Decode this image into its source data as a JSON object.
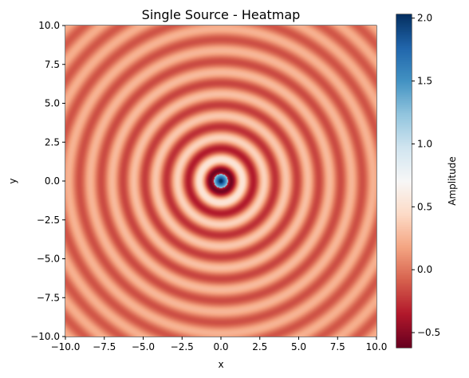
{
  "chart_data": {
    "type": "heatmap",
    "title": "Single Source - Heatmap",
    "xlabel": "x",
    "ylabel": "y",
    "xlim": [
      -10,
      10
    ],
    "ylim": [
      -10,
      10
    ],
    "x_ticks": [
      -10,
      -7.5,
      -5,
      -2.5,
      0,
      2.5,
      5,
      7.5,
      10
    ],
    "y_ticks": [
      -10,
      -7.5,
      -5,
      -2.5,
      0,
      2.5,
      5,
      7.5,
      10
    ],
    "x_tick_labels": [
      "−10.0",
      "−7.5",
      "−5.0",
      "−2.5",
      "0.0",
      "2.5",
      "5.0",
      "7.5",
      "10.0"
    ],
    "y_tick_labels": [
      "−10.0",
      "−7.5",
      "−5.0",
      "−2.5",
      "0.0",
      "2.5",
      "5.0",
      "7.5",
      "10.0"
    ],
    "field": {
      "source": [
        0,
        0
      ],
      "ring_radii_peaks": [
        0,
        1.5,
        2.8,
        4.2,
        5.6,
        7.0,
        8.4,
        9.8
      ],
      "ring_radii_troughs": [
        0.75,
        2.2,
        3.5,
        4.9,
        6.3,
        7.7,
        9.1
      ],
      "center_amplitude": 2.0,
      "min_amplitude": -0.6
    },
    "colormap": "RdBu",
    "colorbar": {
      "label": "Amplitude",
      "range": [
        -0.62,
        2.03
      ],
      "ticks": [
        -0.5,
        0,
        0.5,
        1,
        1.5,
        2
      ],
      "tick_labels": [
        "−0.5",
        "0.0",
        "0.5",
        "1.0",
        "1.5",
        "2.0"
      ]
    }
  }
}
